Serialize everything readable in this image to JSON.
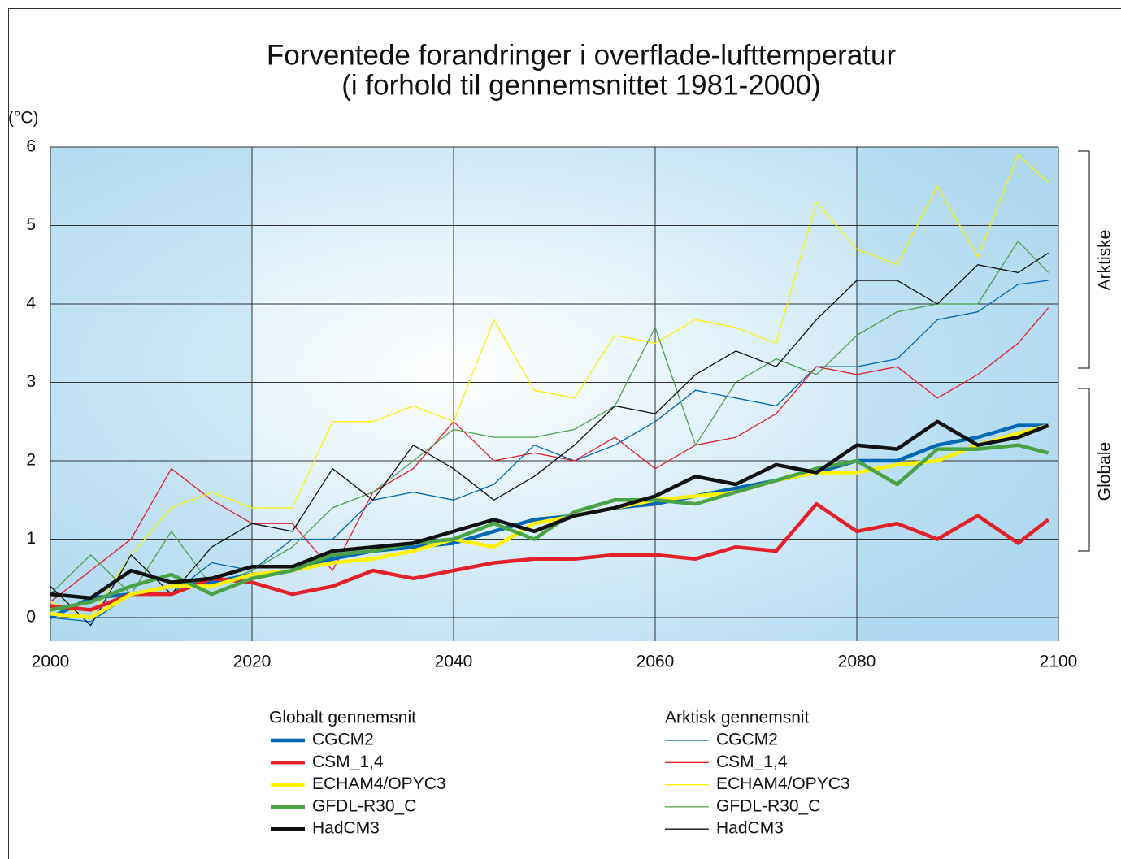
{
  "chart_data": {
    "type": "line",
    "title": [
      "Forventede forandringer i overflade-lufttemperatur",
      "(i forhold til gennemsnittet 1981-2000)"
    ],
    "y_label": "(°C)",
    "x": [
      2000,
      2004,
      2008,
      2012,
      2016,
      2020,
      2024,
      2028,
      2032,
      2036,
      2040,
      2044,
      2048,
      2052,
      2056,
      2060,
      2064,
      2068,
      2072,
      2076,
      2080,
      2084,
      2088,
      2092,
      2096,
      2099
    ],
    "xlim": [
      2000,
      2100
    ],
    "xticks": [
      2000,
      2020,
      2040,
      2060,
      2080,
      2100
    ],
    "ylim": [
      -0.3,
      6
    ],
    "yticks": [
      0,
      1,
      2,
      3,
      4,
      5,
      6
    ],
    "grid": true,
    "region_labels": [
      "Arktiske",
      "Globale"
    ],
    "groups": [
      {
        "title": "Globalt gennemsnit",
        "line_width": 4.5,
        "series": [
          {
            "name": "CGCM2",
            "color": "#0068b4",
            "values": [
              0.0,
              0.25,
              0.3,
              0.4,
              0.45,
              0.55,
              0.6,
              0.75,
              0.85,
              0.9,
              0.95,
              1.1,
              1.25,
              1.3,
              1.4,
              1.45,
              1.55,
              1.65,
              1.75,
              1.85,
              2.0,
              2.0,
              2.2,
              2.3,
              2.45,
              2.45
            ]
          },
          {
            "name": "CSM_1,4",
            "color": "#e3212b",
            "values": [
              0.15,
              0.1,
              0.3,
              0.3,
              0.5,
              0.45,
              0.3,
              0.4,
              0.6,
              0.5,
              0.6,
              0.7,
              0.75,
              0.75,
              0.8,
              0.8,
              0.75,
              0.9,
              0.85,
              1.45,
              1.1,
              1.2,
              1.0,
              1.3,
              0.95,
              1.25
            ]
          },
          {
            "name": "ECHAM4/OPYC3",
            "color": "#fff200",
            "values": [
              0.05,
              0.0,
              0.3,
              0.4,
              0.4,
              0.55,
              0.6,
              0.7,
              0.75,
              0.85,
              1.0,
              0.9,
              1.2,
              1.3,
              1.4,
              1.5,
              1.55,
              1.6,
              1.75,
              1.85,
              1.85,
              1.95,
              2.0,
              2.2,
              2.35,
              2.45
            ]
          },
          {
            "name": "GFDL-R30_C",
            "color": "#4aa346",
            "values": [
              0.1,
              0.2,
              0.4,
              0.55,
              0.3,
              0.5,
              0.6,
              0.8,
              0.85,
              0.95,
              1.0,
              1.2,
              1.0,
              1.35,
              1.5,
              1.5,
              1.45,
              1.6,
              1.75,
              1.9,
              2.0,
              1.7,
              2.15,
              2.15,
              2.2,
              2.1
            ]
          },
          {
            "name": "HadCM3",
            "color": "#111111",
            "values": [
              0.3,
              0.25,
              0.6,
              0.45,
              0.5,
              0.65,
              0.65,
              0.85,
              0.9,
              0.95,
              1.1,
              1.25,
              1.1,
              1.3,
              1.4,
              1.55,
              1.8,
              1.7,
              1.95,
              1.85,
              2.2,
              2.15,
              2.5,
              2.2,
              2.3,
              2.45
            ]
          }
        ]
      },
      {
        "title": "Arktisk gennemsnit",
        "line_width": 1.3,
        "series": [
          {
            "name": "CGCM2",
            "color": "#0068b4",
            "values": [
              0.0,
              -0.05,
              0.3,
              0.3,
              0.7,
              0.6,
              1.0,
              1.0,
              1.5,
              1.6,
              1.5,
              1.7,
              2.2,
              2.0,
              2.2,
              2.5,
              2.9,
              2.8,
              2.7,
              3.2,
              3.2,
              3.3,
              3.8,
              3.9,
              4.25,
              4.3
            ]
          },
          {
            "name": "CSM_1,4",
            "color": "#e3212b",
            "values": [
              0.2,
              0.6,
              1.0,
              1.9,
              1.5,
              1.2,
              1.2,
              0.6,
              1.6,
              1.9,
              2.5,
              2.0,
              2.1,
              2.0,
              2.3,
              1.9,
              2.2,
              2.3,
              2.6,
              3.2,
              3.1,
              3.2,
              2.8,
              3.1,
              3.5,
              3.95
            ]
          },
          {
            "name": "ECHAM4/OPYC3",
            "color": "#fff200",
            "values": [
              0.2,
              0.0,
              0.8,
              1.4,
              1.6,
              1.4,
              1.4,
              2.5,
              2.5,
              2.7,
              2.5,
              3.8,
              2.9,
              2.8,
              3.6,
              3.5,
              3.8,
              3.7,
              3.5,
              5.3,
              4.7,
              4.5,
              5.5,
              4.6,
              5.9,
              5.55
            ]
          },
          {
            "name": "GFDL-R30_C",
            "color": "#4aa346",
            "values": [
              0.3,
              0.8,
              0.3,
              1.1,
              0.4,
              0.6,
              0.9,
              1.4,
              1.6,
              2.0,
              2.4,
              2.3,
              2.3,
              2.4,
              2.7,
              3.7,
              2.2,
              3.0,
              3.3,
              3.1,
              3.6,
              3.9,
              4.0,
              4.0,
              4.8,
              4.4
            ]
          },
          {
            "name": "HadCM3",
            "color": "#111111",
            "values": [
              0.4,
              -0.1,
              0.8,
              0.3,
              0.9,
              1.2,
              1.1,
              1.9,
              1.5,
              2.2,
              1.9,
              1.5,
              1.8,
              2.2,
              2.7,
              2.6,
              3.1,
              3.4,
              3.2,
              3.8,
              4.3,
              4.3,
              4.0,
              4.5,
              4.4,
              4.65
            ]
          }
        ]
      }
    ]
  }
}
